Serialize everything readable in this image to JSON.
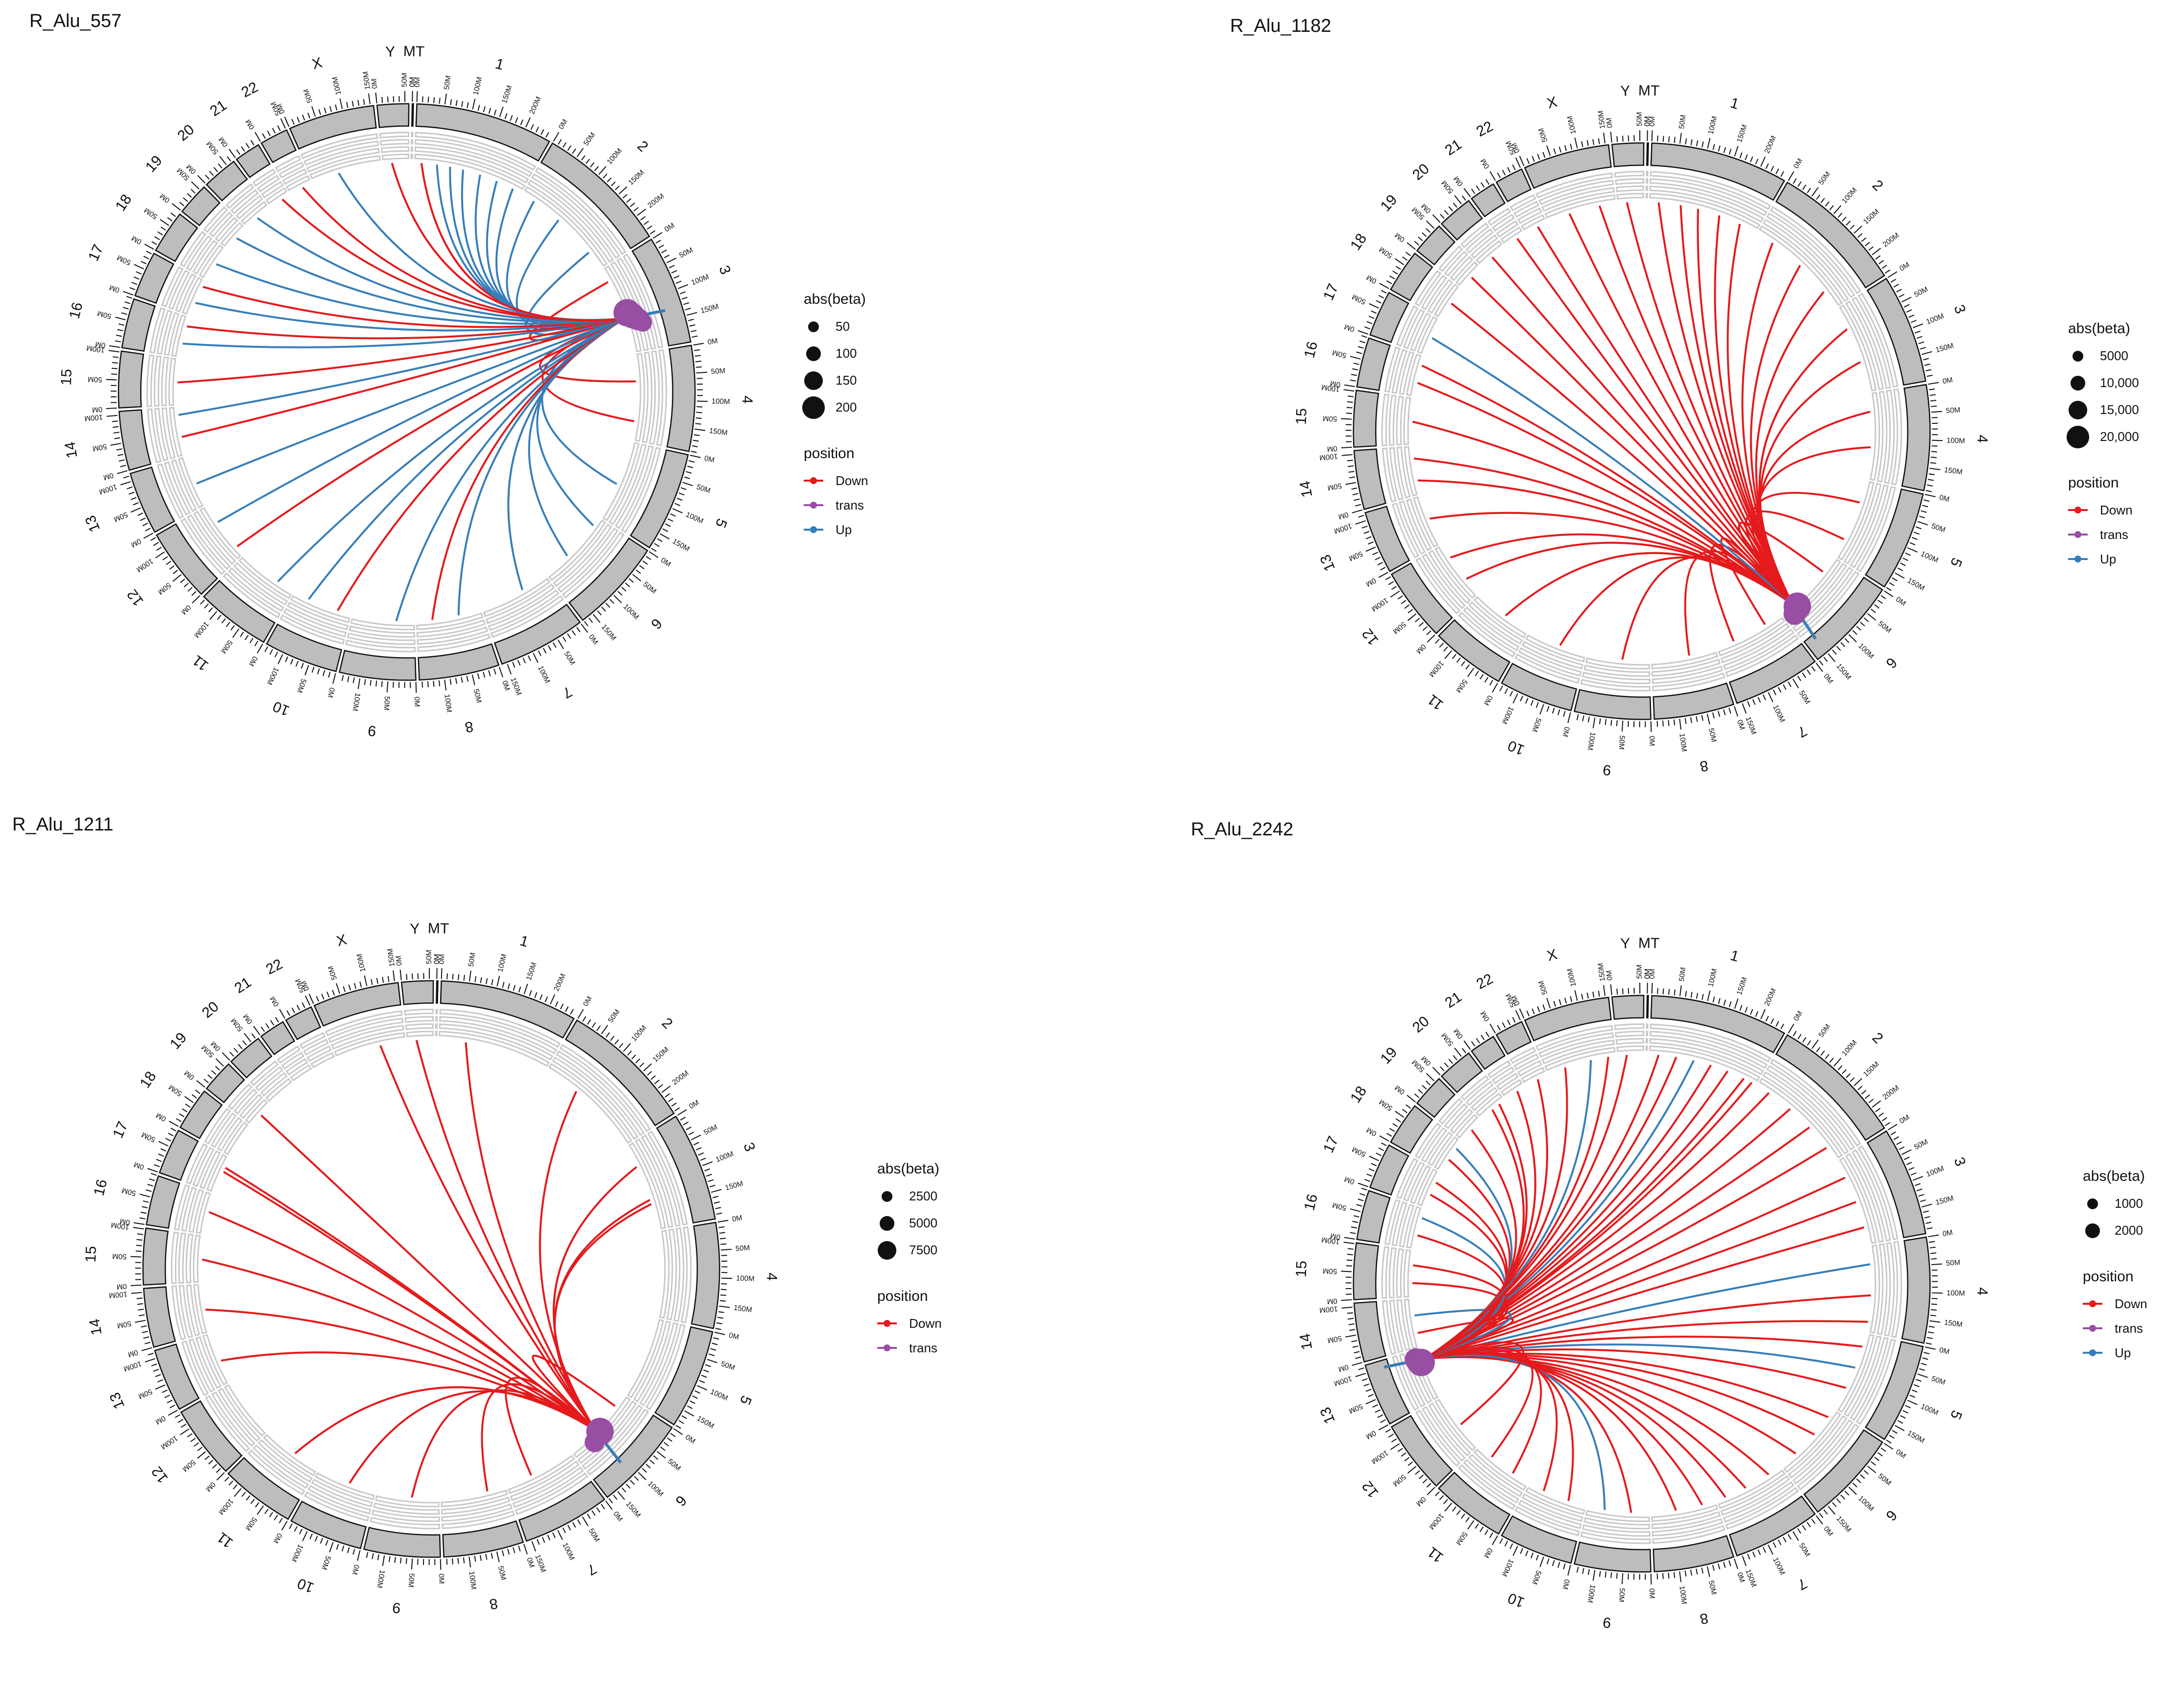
{
  "chromosomes": [
    {
      "name": "1",
      "mb": 249
    },
    {
      "name": "2",
      "mb": 243
    },
    {
      "name": "3",
      "mb": 198
    },
    {
      "name": "4",
      "mb": 191
    },
    {
      "name": "5",
      "mb": 181
    },
    {
      "name": "6",
      "mb": 171
    },
    {
      "name": "7",
      "mb": 159
    },
    {
      "name": "8",
      "mb": 145
    },
    {
      "name": "9",
      "mb": 138
    },
    {
      "name": "10",
      "mb": 134
    },
    {
      "name": "11",
      "mb": 135
    },
    {
      "name": "12",
      "mb": 133
    },
    {
      "name": "13",
      "mb": 114
    },
    {
      "name": "14",
      "mb": 107
    },
    {
      "name": "15",
      "mb": 102
    },
    {
      "name": "16",
      "mb": 90
    },
    {
      "name": "17",
      "mb": 83
    },
    {
      "name": "18",
      "mb": 78
    },
    {
      "name": "19",
      "mb": 59
    },
    {
      "name": "20",
      "mb": 64
    },
    {
      "name": "21",
      "mb": 47
    },
    {
      "name": "22",
      "mb": 51
    },
    {
      "name": "X",
      "mb": 156
    },
    {
      "name": "Y",
      "mb": 57
    },
    {
      "name": "MT",
      "mb": 0.5
    }
  ],
  "tick_label_suffix": "M",
  "legend_size_title": "abs(beta)",
  "legend_color_title": "position",
  "colors": {
    "Down": "#e41a1c",
    "trans": "#984ea3",
    "Up": "#377eb8",
    "chrom_fill": "#bdbdbd",
    "track": "#c8c8c8"
  },
  "panels": [
    {
      "title": "R_Alu_557",
      "size_legend": [
        "50",
        "100",
        "150",
        "200"
      ],
      "color_legend": [
        "Down",
        "trans",
        "Up"
      ],
      "hub": {
        "chrom": "3",
        "mb": 120
      },
      "links": [
        {
          "chrom": "1",
          "mb": 15,
          "type": "Down"
        },
        {
          "chrom": "1",
          "mb": 50,
          "type": "Up"
        },
        {
          "chrom": "1",
          "mb": 80,
          "type": "Up"
        },
        {
          "chrom": "1",
          "mb": 110,
          "type": "Up"
        },
        {
          "chrom": "1",
          "mb": 150,
          "type": "Up"
        },
        {
          "chrom": "1",
          "mb": 190,
          "type": "Up"
        },
        {
          "chrom": "1",
          "mb": 230,
          "type": "Up"
        },
        {
          "chrom": "2",
          "mb": 30,
          "type": "Up"
        },
        {
          "chrom": "2",
          "mb": 100,
          "type": "Up"
        },
        {
          "chrom": "2",
          "mb": 200,
          "type": "Up"
        },
        {
          "chrom": "3",
          "mb": 30,
          "type": "Down"
        },
        {
          "chrom": "4",
          "mb": 60,
          "type": "Down"
        },
        {
          "chrom": "4",
          "mb": 150,
          "type": "Down"
        },
        {
          "chrom": "5",
          "mb": 100,
          "type": "Up"
        },
        {
          "chrom": "6",
          "mb": 20,
          "type": "Up"
        },
        {
          "chrom": "6",
          "mb": 110,
          "type": "Up"
        },
        {
          "chrom": "7",
          "mb": 60,
          "type": "Up"
        },
        {
          "chrom": "8",
          "mb": 50,
          "type": "Up"
        },
        {
          "chrom": "8",
          "mb": 110,
          "type": "Down"
        },
        {
          "chrom": "9",
          "mb": 40,
          "type": "Up"
        },
        {
          "chrom": "10",
          "mb": 30,
          "type": "Down"
        },
        {
          "chrom": "10",
          "mb": 100,
          "type": "Up"
        },
        {
          "chrom": "11",
          "mb": 40,
          "type": "Up"
        },
        {
          "chrom": "12",
          "mb": 20,
          "type": "Down"
        },
        {
          "chrom": "12",
          "mb": 90,
          "type": "Up"
        },
        {
          "chrom": "13",
          "mb": 50,
          "type": "Up"
        },
        {
          "chrom": "14",
          "mb": 40,
          "type": "Down"
        },
        {
          "chrom": "14",
          "mb": 90,
          "type": "Up"
        },
        {
          "chrom": "15",
          "mb": 50,
          "type": "Down"
        },
        {
          "chrom": "16",
          "mb": 30,
          "type": "Up"
        },
        {
          "chrom": "16",
          "mb": 70,
          "type": "Down"
        },
        {
          "chrom": "17",
          "mb": 30,
          "type": "Up"
        },
        {
          "chrom": "17",
          "mb": 70,
          "type": "Down"
        },
        {
          "chrom": "18",
          "mb": 40,
          "type": "Up"
        },
        {
          "chrom": "19",
          "mb": 30,
          "type": "Up"
        },
        {
          "chrom": "20",
          "mb": 30,
          "type": "Up"
        },
        {
          "chrom": "21",
          "mb": 30,
          "type": "Down"
        },
        {
          "chrom": "22",
          "mb": 30,
          "type": "Down"
        },
        {
          "chrom": "X",
          "mb": 60,
          "type": "Up"
        },
        {
          "chrom": "Y",
          "mb": 20,
          "type": "Down"
        }
      ],
      "dots": [
        {
          "chrom": "3",
          "mb": 110,
          "size": 200
        },
        {
          "chrom": "3",
          "mb": 120,
          "size": 150
        },
        {
          "chrom": "3",
          "mb": 130,
          "size": 100
        },
        {
          "chrom": "3",
          "mb": 140,
          "size": 50
        }
      ]
    },
    {
      "title": "R_Alu_1182",
      "size_legend": [
        "5000",
        "10,000",
        "15,000",
        "20,000"
      ],
      "color_legend": [
        "Down",
        "trans",
        "Up"
      ],
      "hub": {
        "chrom": "6",
        "mb": 140
      },
      "links": [
        {
          "chrom": "1",
          "mb": 20,
          "type": "Down"
        },
        {
          "chrom": "1",
          "mb": 70,
          "type": "Down"
        },
        {
          "chrom": "1",
          "mb": 110,
          "type": "Down"
        },
        {
          "chrom": "1",
          "mb": 160,
          "type": "Down"
        },
        {
          "chrom": "1",
          "mb": 210,
          "type": "Down"
        },
        {
          "chrom": "2",
          "mb": 40,
          "type": "Down"
        },
        {
          "chrom": "2",
          "mb": 120,
          "type": "Down"
        },
        {
          "chrom": "2",
          "mb": 200,
          "type": "Down"
        },
        {
          "chrom": "3",
          "mb": 50,
          "type": "Down"
        },
        {
          "chrom": "3",
          "mb": 130,
          "type": "Down"
        },
        {
          "chrom": "4",
          "mb": 40,
          "type": "Down"
        },
        {
          "chrom": "4",
          "mb": 120,
          "type": "Down"
        },
        {
          "chrom": "5",
          "mb": 50,
          "type": "Down"
        },
        {
          "chrom": "5",
          "mb": 140,
          "type": "Down"
        },
        {
          "chrom": "6",
          "mb": 40,
          "type": "Down"
        },
        {
          "chrom": "7",
          "mb": 40,
          "type": "Down"
        },
        {
          "chrom": "7",
          "mb": 120,
          "type": "Down"
        },
        {
          "chrom": "8",
          "mb": 60,
          "type": "Down"
        },
        {
          "chrom": "9",
          "mb": 60,
          "type": "Down"
        },
        {
          "chrom": "10",
          "mb": 60,
          "type": "Down"
        },
        {
          "chrom": "11",
          "mb": 60,
          "type": "Down"
        },
        {
          "chrom": "12",
          "mb": 40,
          "type": "Down"
        },
        {
          "chrom": "12",
          "mb": 100,
          "type": "Down"
        },
        {
          "chrom": "13",
          "mb": 60,
          "type": "Down"
        },
        {
          "chrom": "14",
          "mb": 30,
          "type": "Down"
        },
        {
          "chrom": "14",
          "mb": 80,
          "type": "Down"
        },
        {
          "chrom": "15",
          "mb": 50,
          "type": "Down"
        },
        {
          "chrom": "16",
          "mb": 30,
          "type": "Down"
        },
        {
          "chrom": "16",
          "mb": 70,
          "type": "Down"
        },
        {
          "chrom": "17",
          "mb": 40,
          "type": "Up"
        },
        {
          "chrom": "18",
          "mb": 40,
          "type": "Down"
        },
        {
          "chrom": "19",
          "mb": 30,
          "type": "Down"
        },
        {
          "chrom": "20",
          "mb": 30,
          "type": "Down"
        },
        {
          "chrom": "21",
          "mb": 30,
          "type": "Down"
        },
        {
          "chrom": "22",
          "mb": 30,
          "type": "Down"
        },
        {
          "chrom": "X",
          "mb": 50,
          "type": "Down"
        },
        {
          "chrom": "X",
          "mb": 120,
          "type": "Down"
        },
        {
          "chrom": "Y",
          "mb": 20,
          "type": "Down"
        }
      ],
      "dots": [
        {
          "chrom": "6",
          "mb": 135,
          "size": 20000
        },
        {
          "chrom": "6",
          "mb": 150,
          "size": 10000
        }
      ]
    },
    {
      "title": "R_Alu_1211",
      "size_legend": [
        "2500",
        "5000",
        "7500"
      ],
      "color_legend": [
        "Down",
        "trans"
      ],
      "hub": {
        "chrom": "6",
        "mb": 100
      },
      "links": [
        {
          "chrom": "1",
          "mb": 60,
          "type": "Down"
        },
        {
          "chrom": "2",
          "mb": 80,
          "type": "Down"
        },
        {
          "chrom": "3",
          "mb": 50,
          "type": "Down"
        },
        {
          "chrom": "3",
          "mb": 130,
          "type": "Down"
        },
        {
          "chrom": "3",
          "mb": 140,
          "type": "Down"
        },
        {
          "chrom": "6",
          "mb": 30,
          "type": "Down"
        },
        {
          "chrom": "7",
          "mb": 100,
          "type": "Down"
        },
        {
          "chrom": "8",
          "mb": 40,
          "type": "Down"
        },
        {
          "chrom": "9",
          "mb": 60,
          "type": "Down"
        },
        {
          "chrom": "10",
          "mb": 60,
          "type": "Down"
        },
        {
          "chrom": "11",
          "mb": 60,
          "type": "Down"
        },
        {
          "chrom": "13",
          "mb": 50,
          "type": "Down"
        },
        {
          "chrom": "14",
          "mb": 50,
          "type": "Down"
        },
        {
          "chrom": "15",
          "mb": 50,
          "type": "Down"
        },
        {
          "chrom": "16",
          "mb": 50,
          "type": "Down"
        },
        {
          "chrom": "17",
          "mb": 50,
          "type": "Down"
        },
        {
          "chrom": "17",
          "mb": 60,
          "type": "Down"
        },
        {
          "chrom": "19",
          "mb": 30,
          "type": "Down"
        },
        {
          "chrom": "Y",
          "mb": 20,
          "type": "Down"
        },
        {
          "chrom": "X",
          "mb": 100,
          "type": "Down"
        }
      ],
      "dots": [
        {
          "chrom": "6",
          "mb": 95,
          "size": 7500
        },
        {
          "chrom": "6",
          "mb": 120,
          "size": 2500
        }
      ]
    },
    {
      "title": "R_Alu_2242",
      "size_legend": [
        "1000",
        "2000"
      ],
      "color_legend": [
        "Down",
        "trans",
        "Up"
      ],
      "hub": {
        "chrom": "13",
        "mb": 90
      },
      "links": [
        {
          "chrom": "1",
          "mb": 20,
          "type": "Down"
        },
        {
          "chrom": "1",
          "mb": 60,
          "type": "Down"
        },
        {
          "chrom": "1",
          "mb": 100,
          "type": "Up"
        },
        {
          "chrom": "1",
          "mb": 140,
          "type": "Down"
        },
        {
          "chrom": "1",
          "mb": 180,
          "type": "Down"
        },
        {
          "chrom": "1",
          "mb": 220,
          "type": "Down"
        },
        {
          "chrom": "2",
          "mb": 30,
          "type": "Down"
        },
        {
          "chrom": "2",
          "mb": 90,
          "type": "Down"
        },
        {
          "chrom": "2",
          "mb": 150,
          "type": "Down"
        },
        {
          "chrom": "2",
          "mb": 210,
          "type": "Down"
        },
        {
          "chrom": "3",
          "mb": 40,
          "type": "Down"
        },
        {
          "chrom": "3",
          "mb": 100,
          "type": "Down"
        },
        {
          "chrom": "3",
          "mb": 160,
          "type": "Down"
        },
        {
          "chrom": "4",
          "mb": 40,
          "type": "Up"
        },
        {
          "chrom": "4",
          "mb": 110,
          "type": "Down"
        },
        {
          "chrom": "4",
          "mb": 170,
          "type": "Down"
        },
        {
          "chrom": "5",
          "mb": 30,
          "type": "Down"
        },
        {
          "chrom": "5",
          "mb": 80,
          "type": "Up"
        },
        {
          "chrom": "5",
          "mb": 130,
          "type": "Down"
        },
        {
          "chrom": "6",
          "mb": 20,
          "type": "Down"
        },
        {
          "chrom": "6",
          "mb": 70,
          "type": "Down"
        },
        {
          "chrom": "6",
          "mb": 130,
          "type": "Down"
        },
        {
          "chrom": "7",
          "mb": 30,
          "type": "Down"
        },
        {
          "chrom": "7",
          "mb": 90,
          "type": "Down"
        },
        {
          "chrom": "7",
          "mb": 140,
          "type": "Down"
        },
        {
          "chrom": "8",
          "mb": 30,
          "type": "Down"
        },
        {
          "chrom": "8",
          "mb": 90,
          "type": "Down"
        },
        {
          "chrom": "9",
          "mb": 40,
          "type": "Down"
        },
        {
          "chrom": "9",
          "mb": 100,
          "type": "Up"
        },
        {
          "chrom": "10",
          "mb": 40,
          "type": "Down"
        },
        {
          "chrom": "10",
          "mb": 100,
          "type": "Down"
        },
        {
          "chrom": "11",
          "mb": 40,
          "type": "Down"
        },
        {
          "chrom": "11",
          "mb": 100,
          "type": "Down"
        },
        {
          "chrom": "12",
          "mb": 60,
          "type": "Down"
        },
        {
          "chrom": "14",
          "mb": 30,
          "type": "Down"
        },
        {
          "chrom": "14",
          "mb": 70,
          "type": "Up"
        },
        {
          "chrom": "15",
          "mb": 30,
          "type": "Down"
        },
        {
          "chrom": "15",
          "mb": 70,
          "type": "Down"
        },
        {
          "chrom": "16",
          "mb": 30,
          "type": "Down"
        },
        {
          "chrom": "16",
          "mb": 70,
          "type": "Up"
        },
        {
          "chrom": "17",
          "mb": 30,
          "type": "Down"
        },
        {
          "chrom": "17",
          "mb": 60,
          "type": "Down"
        },
        {
          "chrom": "18",
          "mb": 30,
          "type": "Down"
        },
        {
          "chrom": "18",
          "mb": 60,
          "type": "Up"
        },
        {
          "chrom": "19",
          "mb": 30,
          "type": "Down"
        },
        {
          "chrom": "20",
          "mb": 30,
          "type": "Down"
        },
        {
          "chrom": "20",
          "mb": 50,
          "type": "Down"
        },
        {
          "chrom": "21",
          "mb": 30,
          "type": "Down"
        },
        {
          "chrom": "22",
          "mb": 30,
          "type": "Down"
        },
        {
          "chrom": "X",
          "mb": 40,
          "type": "Down"
        },
        {
          "chrom": "X",
          "mb": 100,
          "type": "Up"
        },
        {
          "chrom": "X",
          "mb": 140,
          "type": "Down"
        },
        {
          "chrom": "Y",
          "mb": 20,
          "type": "Down"
        },
        {
          "chrom": "1",
          "mb": 240,
          "type": "Down"
        }
      ],
      "dots": [
        {
          "chrom": "13",
          "mb": 85,
          "size": 2000
        },
        {
          "chrom": "13",
          "mb": 95,
          "size": 1000
        }
      ]
    }
  ]
}
